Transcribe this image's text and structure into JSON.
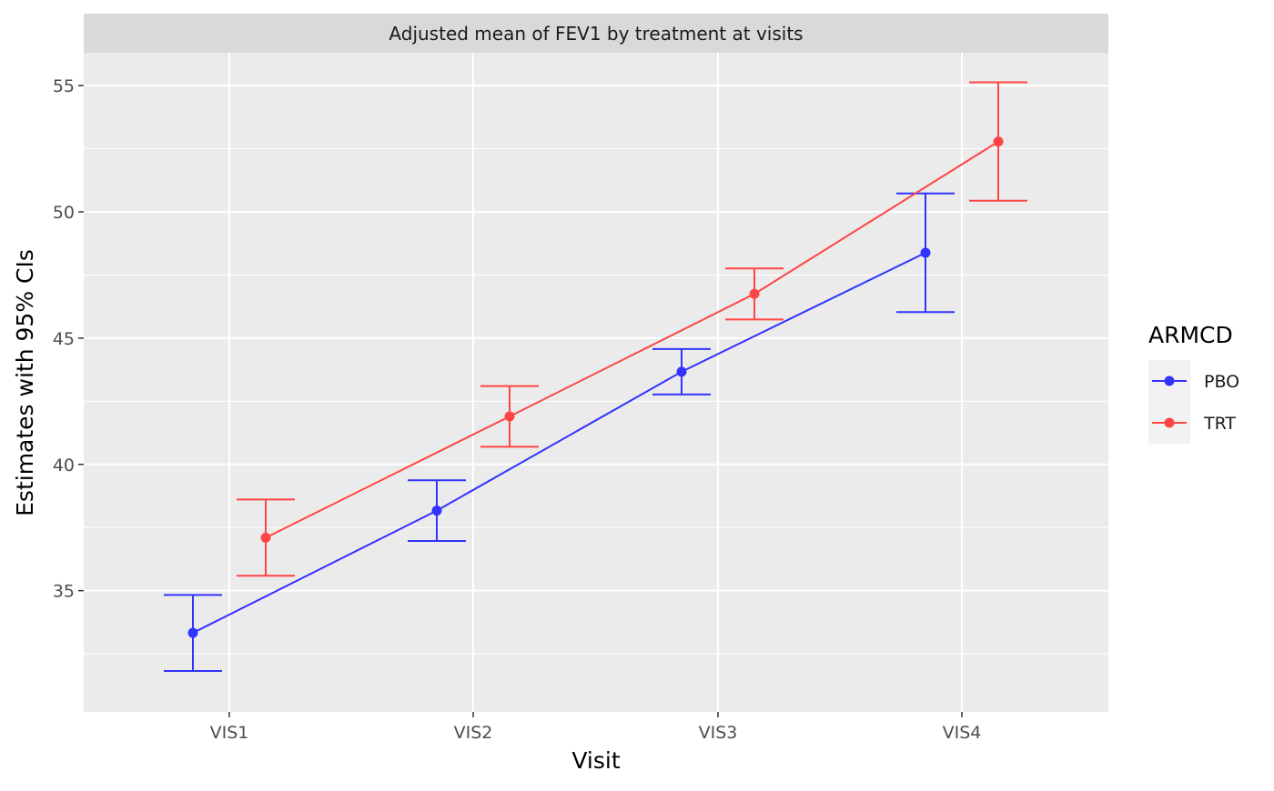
{
  "chart_data": {
    "type": "line",
    "title": "Adjusted mean of FEV1 by treatment at visits",
    "xlabel": "Visit",
    "ylabel": "Estimates with 95% CIs",
    "categories": [
      "VIS1",
      "VIS2",
      "VIS3",
      "VIS4"
    ],
    "y_ticks": [
      "35",
      "40",
      "45",
      "50",
      "55"
    ],
    "ylim": [
      30.2,
      56.3
    ],
    "grid": true,
    "legend": {
      "title": "ARMCD",
      "position": "right"
    },
    "series": [
      {
        "name": "PBO",
        "color": "#3333FF",
        "values": [
          33.33,
          38.17,
          43.67,
          48.38
        ],
        "lower": [
          31.82,
          36.97,
          42.77,
          46.03
        ],
        "upper": [
          34.83,
          39.37,
          44.57,
          50.73
        ]
      },
      {
        "name": "TRT",
        "color": "#FF4545",
        "values": [
          37.1,
          41.9,
          46.75,
          52.78
        ],
        "lower": [
          35.59,
          40.7,
          45.74,
          50.44
        ],
        "upper": [
          38.61,
          43.1,
          47.76,
          55.13
        ]
      }
    ]
  }
}
